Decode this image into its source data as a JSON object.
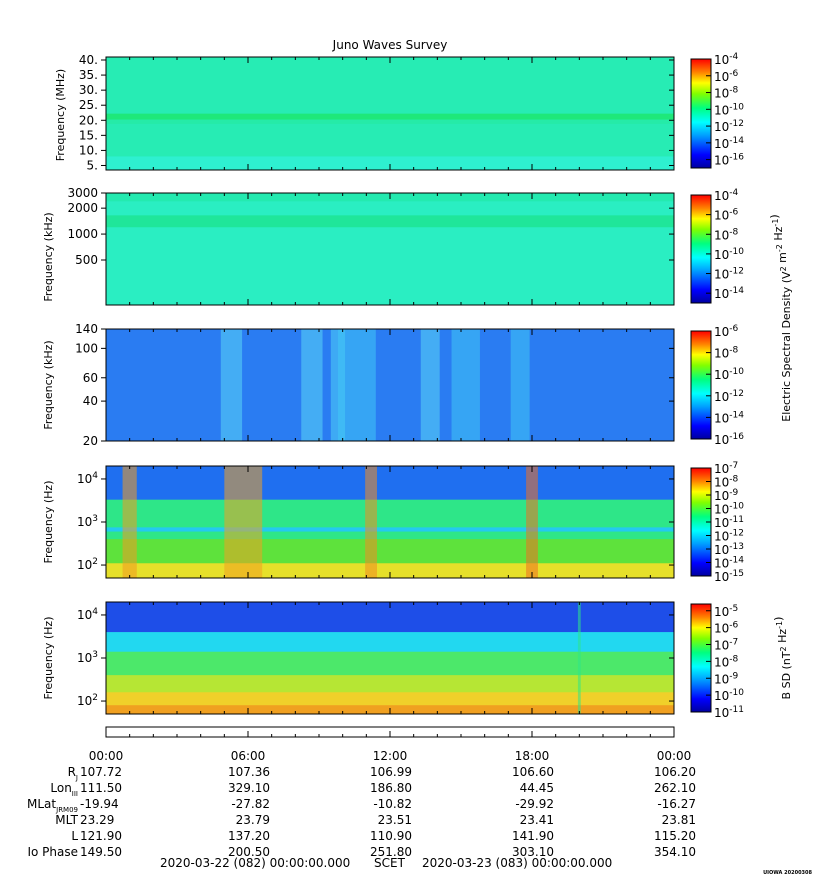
{
  "title": "Juno Waves Survey",
  "footer_mark": "UIOWA 20200308",
  "chart_data": [
    {
      "type": "heatmap",
      "name": "panel-hfwbr",
      "ylabel": "Frequency (MHz)",
      "yscale": "linear",
      "ylim": [
        3.5,
        41
      ],
      "yticks": [
        5,
        10,
        15,
        20,
        25,
        30,
        35,
        40
      ],
      "ytick_labels": [
        "5.",
        "10.",
        "15.",
        "20.",
        "25.",
        "30.",
        "35.",
        "40."
      ],
      "colorbar": {
        "label": "",
        "exp_min": -17,
        "exp_max": -4,
        "ticks": [
          -4,
          -6,
          -8,
          -10,
          -12,
          -14,
          -16
        ],
        "tick_labels": [
          "10-4",
          "10-6",
          "10-8",
          "10-10",
          "10-12",
          "10-14",
          "10-16"
        ]
      },
      "bands": [
        {
          "y0": 3.5,
          "y1": 41,
          "color": "#27ecb4"
        },
        {
          "y0": 3.5,
          "y1": 8,
          "color": "#2ef0d0"
        },
        {
          "y0": 20.2,
          "y1": 22.2,
          "color": "#1ee87a"
        },
        {
          "y0": 18.8,
          "y1": 20.2,
          "color": "#25eba8"
        }
      ],
      "streaks": []
    },
    {
      "type": "heatmap",
      "name": "panel-hfr-low",
      "ylabel": "Frequency (kHz)",
      "yscale": "log",
      "ylim": [
        150,
        3000
      ],
      "yticks": [
        500,
        1000,
        2000,
        3000
      ],
      "ytick_labels": [
        "500",
        "1000",
        "2000",
        "3000"
      ],
      "colorbar": {
        "label": "",
        "exp_min": -15,
        "exp_max": -4,
        "ticks": [
          -4,
          -6,
          -8,
          -10,
          -12,
          -14
        ],
        "tick_labels": [
          "10-4",
          "10-6",
          "10-8",
          "10-10",
          "10-12",
          "10-14"
        ]
      },
      "bands": [
        {
          "y0": 150,
          "y1": 3000,
          "color": "#2aeec2"
        },
        {
          "y0": 1200,
          "y1": 1650,
          "color": "#1fe69a"
        },
        {
          "y0": 2400,
          "y1": 3000,
          "color": "#24eab0"
        }
      ],
      "streaks": []
    },
    {
      "type": "heatmap",
      "name": "panel-lfr-high",
      "ylabel": "Frequency (kHz)",
      "yscale": "log",
      "ylim": [
        20,
        140
      ],
      "yticks": [
        20,
        40,
        60,
        100,
        140
      ],
      "ytick_labels": [
        "20",
        "40",
        "60",
        "100",
        "140"
      ],
      "colorbar": {
        "label": "Electric Spectral Density (V2 m-2 Hz-1)",
        "exp_min": -16,
        "exp_max": -6,
        "ticks": [
          -6,
          -8,
          -10,
          -12,
          -14,
          -16
        ],
        "tick_labels": [
          "10-6",
          "10-8",
          "10-10",
          "10-12",
          "10-14",
          "10-16"
        ]
      },
      "bands": [
        {
          "y0": 20,
          "y1": 140,
          "color": "#2a7cf2"
        }
      ],
      "streaks": [
        {
          "t": 5.3,
          "w": 0.9,
          "color": "#5ad6f5"
        },
        {
          "t": 8.7,
          "w": 0.9,
          "color": "#5ad6f5"
        },
        {
          "t": 9.8,
          "w": 0.6,
          "color": "#4fd0f6"
        },
        {
          "t": 10.6,
          "w": 1.6,
          "color": "#3fc6f6"
        },
        {
          "t": 13.7,
          "w": 0.8,
          "color": "#5ad6f5"
        },
        {
          "t": 15.2,
          "w": 1.2,
          "color": "#3fc6f6"
        },
        {
          "t": 17.5,
          "w": 0.8,
          "color": "#3fc6f6"
        }
      ]
    },
    {
      "type": "heatmap",
      "name": "panel-lfr-low",
      "ylabel": "Frequency (Hz)",
      "yscale": "log",
      "ylim": [
        50,
        20000
      ],
      "yticks": [
        100,
        1000,
        10000
      ],
      "ytick_labels": [
        "10^2",
        "10^3",
        "10^4"
      ],
      "colorbar": {
        "label": "",
        "exp_min": -15,
        "exp_max": -7,
        "ticks": [
          -7,
          -8,
          -9,
          -10,
          -11,
          -12,
          -13,
          -14,
          -15
        ],
        "tick_labels": [
          "10-7",
          "10-8",
          "10-9",
          "10-10",
          "10-11",
          "10-12",
          "10-13",
          "10-14",
          "10-15"
        ]
      },
      "bands": [
        {
          "y0": 50,
          "y1": 20000,
          "color": "#1f6ff0"
        },
        {
          "y0": 50,
          "y1": 3300,
          "color": "#2ee688"
        },
        {
          "y0": 600,
          "y1": 750,
          "color": "#24c9f0"
        },
        {
          "y0": 50,
          "y1": 400,
          "color": "#5ee23c"
        },
        {
          "y0": 50,
          "y1": 110,
          "color": "#e6e02a"
        }
      ],
      "streaks": [
        {
          "t": 1.0,
          "w": 0.6,
          "color": "#f09a20"
        },
        {
          "t": 5.8,
          "w": 1.6,
          "color": "#f0a020"
        },
        {
          "t": 11.2,
          "w": 0.5,
          "color": "#f08c20"
        },
        {
          "t": 18.0,
          "w": 0.5,
          "color": "#f07020"
        }
      ]
    },
    {
      "type": "heatmap",
      "name": "panel-magnetic",
      "ylabel": "Frequency (Hz)",
      "yscale": "log",
      "ylim": [
        50,
        20000
      ],
      "yticks": [
        100,
        1000,
        10000
      ],
      "ytick_labels": [
        "10^2",
        "10^3",
        "10^4"
      ],
      "colorbar": {
        "label": "B SD (nT2 Hz-1)",
        "exp_min": -11,
        "exp_max": -4.6,
        "ticks": [
          -5,
          -6,
          -7,
          -8,
          -9,
          -10,
          -11
        ],
        "tick_labels": [
          "10-5",
          "10-6",
          "10-7",
          "10-8",
          "10-9",
          "10-10",
          "10-11"
        ]
      },
      "bands": [
        {
          "y0": 50,
          "y1": 20000,
          "color": "#1e4ee8"
        },
        {
          "y0": 50,
          "y1": 4000,
          "color": "#22d8f0"
        },
        {
          "y0": 50,
          "y1": 1400,
          "color": "#4ce86a"
        },
        {
          "y0": 50,
          "y1": 400,
          "color": "#b6e634"
        },
        {
          "y0": 50,
          "y1": 160,
          "color": "#f0d02a"
        },
        {
          "y0": 50,
          "y1": 80,
          "color": "#f0a020"
        }
      ],
      "streaks": [
        {
          "t": 20.0,
          "w": 0.12,
          "color": "#2ee688"
        }
      ]
    }
  ],
  "time_axis": {
    "x_range_hours": [
      0,
      24
    ],
    "tick_hours": [
      0,
      6,
      12,
      18,
      24
    ],
    "labels": [
      "00:00",
      "06:00",
      "12:00",
      "18:00",
      "00:00"
    ],
    "minor_step_hours": 1
  },
  "ephemeris": [
    {
      "label": "RJ",
      "values": [
        "107.72",
        "107.36",
        "106.99",
        "106.60",
        "106.20"
      ]
    },
    {
      "label": "LonIII",
      "values": [
        "111.50",
        "329.10",
        "186.80",
        "44.45",
        "262.10"
      ]
    },
    {
      "label": "MLatJRM09",
      "values": [
        "-19.94",
        "-27.82",
        "-10.82",
        "-29.92",
        "-16.27"
      ]
    },
    {
      "label": "MLT",
      "values": [
        "23.29",
        "23.79",
        "23.51",
        "23.41",
        "23.81"
      ]
    },
    {
      "label": "L",
      "values": [
        "121.90",
        "137.20",
        "110.90",
        "141.90",
        "115.20"
      ]
    },
    {
      "label": "Io Phase",
      "values": [
        "149.50",
        "200.50",
        "251.80",
        "303.10",
        "354.10"
      ]
    }
  ],
  "bottom_line": {
    "start": "2020-03-22 (082) 00:00:00.000",
    "mid": "SCET",
    "end": "2020-03-23 (083) 00:00:00.000"
  }
}
